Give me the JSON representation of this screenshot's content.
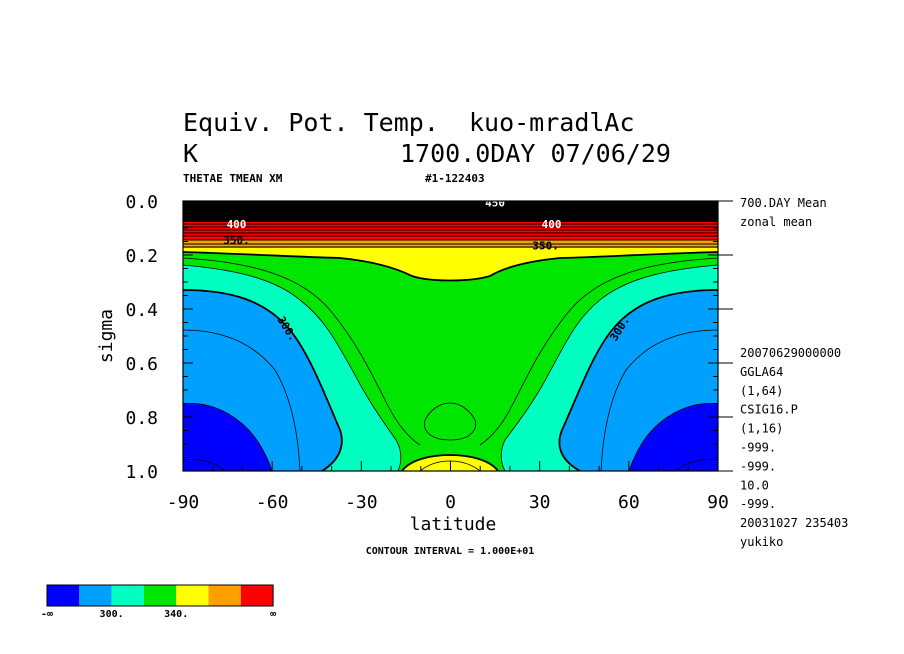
{
  "header": {
    "title_line1": "Equiv. Pot. Temp.  kuo-mradlAc",
    "units": "K",
    "time_line": "1700.0DAY 07/06/29",
    "variable": "THETAE TMEAN XM",
    "run_id": "#1-122403"
  },
  "side_info": {
    "line1": "700.DAY Mean",
    "line2": "zonal mean",
    "meta": [
      "20070629000000",
      "GGLA64",
      "(1,64)",
      "CSIG16.P",
      "(1,16)",
      "-999.",
      "-999.",
      "10.0",
      "-999.",
      "20031027 235403",
      "yukiko"
    ]
  },
  "footer": {
    "contour_interval": "CONTOUR INTERVAL = 1.000E+01"
  },
  "colorbar": {
    "colors": [
      "#0000ff",
      "#00a0ff",
      "#00ffc0",
      "#00e600",
      "#ffff00",
      "#ffa000",
      "#ff0000"
    ],
    "labels": [
      "-∞",
      "300.",
      "340.",
      "∞"
    ]
  },
  "chart_data": {
    "type": "contour",
    "xlabel": "latitude",
    "ylabel": "sigma",
    "xlim": [
      -90,
      90
    ],
    "ylim": [
      1.0,
      0.0
    ],
    "xticks": [
      "-90",
      "-60",
      "-30",
      "0",
      "30",
      "60",
      "90"
    ],
    "yticks": [
      "0.0",
      "0.2",
      "0.4",
      "0.6",
      "0.8",
      "1.0"
    ],
    "contour_interval": 10,
    "contour_labels": [
      {
        "text": "350.",
        "lat": -72,
        "sigma": 0.16
      },
      {
        "text": "350.",
        "lat": 32,
        "sigma": 0.18
      },
      {
        "text": "300.",
        "lat": -56,
        "sigma": 0.48
      },
      {
        "text": "300.",
        "lat": 58,
        "sigma": 0.48
      },
      {
        "text": "400",
        "lat": -72,
        "sigma": 0.1
      },
      {
        "text": "400",
        "lat": 34,
        "sigma": 0.1
      },
      {
        "text": "450",
        "lat": 15,
        "sigma": 0.02
      }
    ],
    "levels": [
      {
        "name": "below 300",
        "color": "#0000ff"
      },
      {
        "name": "300-320",
        "color": "#00a0ff"
      },
      {
        "name": "320-340",
        "color": "#00ffc0"
      },
      {
        "name": "340-350",
        "color": "#00e600"
      },
      {
        "name": "350-360",
        "color": "#ffff00"
      },
      {
        "name": "360-370",
        "color": "#ffa000"
      },
      {
        "name": "370+",
        "color": "#ff0000"
      }
    ]
  }
}
